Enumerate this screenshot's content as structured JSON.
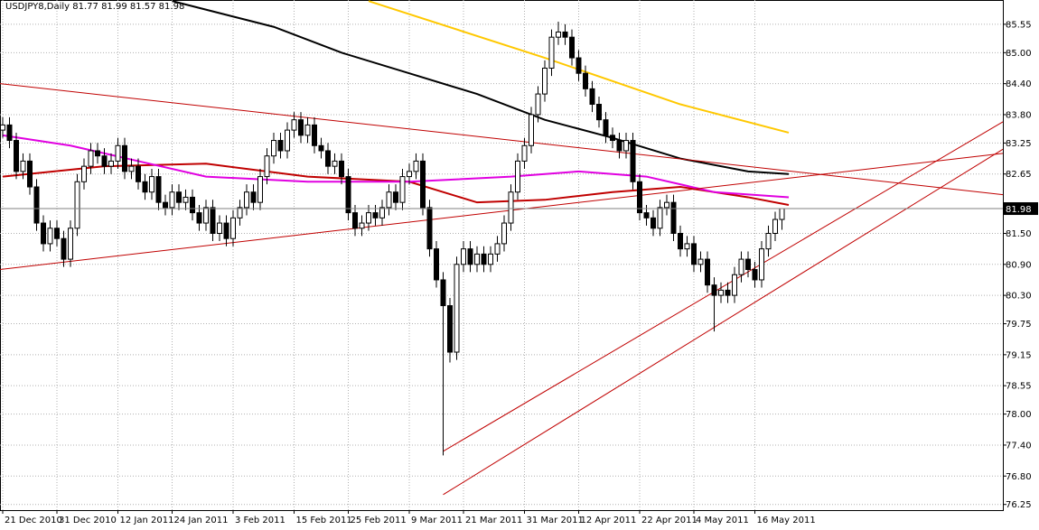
{
  "chart_data": {
    "type": "candlestick",
    "title": "USDJPY8,Daily  81.77 81.99 81.57 81.98",
    "up_color": "#ffffff",
    "down_color": "#000000",
    "wick_color": "#000000",
    "xlim": [
      -0.4,
      147.6
    ],
    "xticks": [
      {
        "value": 0,
        "label": "21 Dec 2010"
      },
      {
        "value": 8,
        "label": "31 Dec 2010"
      },
      {
        "value": 17,
        "label": "12 Jan 2011"
      },
      {
        "value": 25,
        "label": "24 Jan 2011"
      },
      {
        "value": 34,
        "label": "3 Feb 2011"
      },
      {
        "value": 43,
        "label": "15 Feb 2011"
      },
      {
        "value": 51,
        "label": "25 Feb 2011"
      },
      {
        "value": 60,
        "label": "9 Mar 2011"
      },
      {
        "value": 68,
        "label": "21 Mar 2011"
      },
      {
        "value": 77,
        "label": "31 Mar 2011"
      },
      {
        "value": 85,
        "label": "12 Apr 2011"
      },
      {
        "value": 94,
        "label": "22 Apr 2011"
      },
      {
        "value": 102,
        "label": "4 May 2011"
      },
      {
        "value": 111,
        "label": "16 May 2011"
      }
    ],
    "ylim": [
      76.14,
      86.02
    ],
    "yticks": [
      85.55,
      {
        "value": 85,
        "label": "85.00"
      },
      {
        "value": 84.4,
        "label": "84.40"
      },
      {
        "value": 83.8,
        "label": "83.80"
      },
      83.25,
      82.65,
      {
        "value": 81.5,
        "label": "81.50"
      },
      {
        "value": 80.9,
        "label": "80.90"
      },
      {
        "value": 80.3,
        "label": "80.30"
      },
      79.75,
      79.15,
      78.55,
      {
        "value": 78,
        "label": "78.00"
      },
      {
        "value": 77.4,
        "label": "77.40"
      },
      {
        "value": 76.8,
        "label": "76.80"
      },
      76.25
    ],
    "grid": true,
    "open": [
      83.5,
      83.6,
      83.3,
      82.7,
      82.9,
      82.4,
      81.7,
      81.3,
      81.6,
      81.4,
      81.0,
      81.6,
      82.5,
      82.8,
      83.1,
      83.0,
      82.8,
      82.9,
      83.2,
      82.7,
      82.8,
      82.5,
      82.3,
      82.6,
      82.1,
      82.0,
      82.3,
      82.1,
      82.2,
      81.9,
      81.7,
      82.0,
      81.5,
      81.7,
      81.4,
      81.8,
      82.0,
      82.3,
      82.1,
      82.6,
      83.0,
      83.3,
      83.1,
      83.5,
      83.7,
      83.4,
      83.6,
      83.2,
      83.1,
      82.8,
      82.9,
      82.6,
      81.9,
      81.6,
      81.7,
      81.9,
      81.8,
      82.0,
      82.3,
      82.1,
      82.6,
      82.7,
      82.9,
      82.0,
      81.2,
      80.6,
      80.1,
      79.2,
      80.9,
      81.2,
      80.9,
      81.1,
      80.9,
      81.1,
      81.3,
      81.7,
      82.3,
      82.9,
      83.2,
      83.8,
      84.2,
      84.7,
      85.3,
      85.4,
      85.3,
      84.9,
      84.6,
      84.3,
      84.0,
      83.7,
      83.4,
      83.3,
      83.1,
      83.3,
      82.5,
      81.9,
      81.8,
      81.6,
      82.0,
      82.1,
      81.5,
      81.2,
      81.3,
      80.9,
      81.0,
      80.5,
      80.3,
      80.4,
      80.3,
      80.7,
      81.0,
      80.8,
      80.6,
      81.2,
      81.5,
      81.77
    ],
    "high": [
      83.75,
      83.75,
      83.45,
      83.05,
      83.05,
      82.55,
      81.85,
      81.75,
      81.75,
      81.55,
      81.75,
      82.65,
      82.95,
      83.25,
      83.25,
      83.15,
      83.05,
      83.35,
      83.35,
      82.95,
      82.95,
      82.65,
      82.75,
      82.75,
      82.25,
      82.45,
      82.45,
      82.35,
      82.35,
      82.05,
      82.15,
      82.15,
      81.85,
      81.85,
      81.95,
      82.15,
      82.45,
      82.45,
      82.75,
      83.15,
      83.45,
      83.45,
      83.65,
      83.85,
      83.85,
      83.75,
      83.75,
      83.35,
      83.25,
      83.05,
      83.05,
      82.75,
      82.05,
      81.85,
      82.05,
      82.05,
      82.15,
      82.45,
      82.45,
      82.75,
      82.85,
      83.05,
      83.05,
      82.15,
      81.35,
      80.75,
      80.25,
      81.05,
      81.35,
      81.35,
      81.25,
      81.25,
      81.25,
      81.45,
      81.85,
      82.45,
      83.05,
      83.35,
      83.95,
      84.35,
      84.85,
      85.45,
      85.6,
      85.55,
      85.45,
      85.05,
      84.75,
      84.45,
      84.15,
      83.85,
      83.55,
      83.45,
      83.45,
      83.45,
      82.65,
      82.05,
      81.95,
      82.15,
      82.25,
      82.25,
      81.65,
      81.45,
      81.45,
      81.15,
      81.15,
      80.65,
      80.55,
      80.55,
      80.85,
      81.15,
      81.15,
      80.95,
      81.35,
      81.65,
      81.92,
      81.99
    ],
    "low": [
      83.35,
      83.15,
      82.55,
      82.55,
      82.25,
      81.55,
      81.15,
      81.15,
      81.25,
      80.85,
      80.85,
      81.45,
      82.35,
      82.65,
      82.85,
      82.65,
      82.65,
      82.75,
      82.55,
      82.55,
      82.35,
      82.15,
      82.15,
      81.95,
      81.85,
      81.85,
      81.95,
      81.95,
      81.75,
      81.55,
      81.55,
      81.35,
      81.35,
      81.25,
      81.25,
      81.65,
      81.85,
      81.95,
      81.95,
      82.45,
      82.85,
      82.95,
      82.95,
      83.35,
      83.25,
      83.25,
      83.05,
      82.95,
      82.65,
      82.65,
      82.45,
      81.75,
      81.45,
      81.45,
      81.55,
      81.65,
      81.65,
      81.85,
      81.95,
      81.95,
      82.45,
      82.55,
      81.85,
      81.05,
      80.45,
      77.2,
      79.0,
      79.05,
      80.75,
      80.75,
      80.75,
      80.75,
      80.75,
      80.95,
      81.15,
      81.55,
      82.15,
      82.75,
      83.05,
      83.65,
      84.05,
      84.55,
      85.15,
      85.15,
      84.75,
      84.45,
      84.15,
      83.85,
      83.55,
      83.25,
      83.15,
      82.95,
      82.95,
      82.35,
      81.75,
      81.65,
      81.45,
      81.45,
      81.85,
      81.35,
      81.05,
      81.05,
      80.75,
      80.75,
      80.35,
      79.6,
      80.15,
      80.15,
      80.15,
      80.55,
      80.65,
      80.45,
      80.45,
      81.05,
      81.35,
      81.57
    ],
    "close": [
      83.6,
      83.3,
      82.7,
      82.9,
      82.4,
      81.7,
      81.3,
      81.6,
      81.4,
      81.0,
      81.6,
      82.5,
      82.8,
      83.1,
      83.0,
      82.8,
      82.9,
      83.2,
      82.7,
      82.8,
      82.5,
      82.3,
      82.6,
      82.1,
      82.0,
      82.3,
      82.1,
      82.2,
      81.9,
      81.7,
      82.0,
      81.5,
      81.7,
      81.4,
      81.8,
      82.0,
      82.3,
      82.1,
      82.6,
      83.0,
      83.3,
      83.1,
      83.5,
      83.7,
      83.4,
      83.6,
      83.2,
      83.1,
      82.8,
      82.9,
      82.6,
      81.9,
      81.6,
      81.7,
      81.9,
      81.8,
      82.0,
      82.3,
      82.1,
      82.6,
      82.7,
      82.9,
      82.0,
      81.2,
      80.6,
      80.1,
      79.2,
      80.9,
      81.2,
      80.9,
      81.1,
      80.9,
      81.1,
      81.3,
      81.7,
      82.3,
      82.9,
      83.2,
      83.8,
      84.2,
      84.7,
      85.3,
      85.4,
      85.3,
      84.9,
      84.6,
      84.3,
      84.0,
      83.7,
      83.4,
      83.3,
      83.1,
      83.3,
      82.5,
      81.9,
      81.8,
      81.6,
      82.0,
      82.1,
      81.5,
      81.2,
      81.3,
      80.9,
      81.0,
      80.5,
      80.3,
      80.4,
      80.3,
      80.7,
      81.0,
      80.8,
      80.6,
      81.2,
      81.5,
      81.77,
      81.98
    ],
    "overlays": [
      {
        "color": "#000000",
        "width": 2,
        "x": [
          25,
          40,
          50,
          60,
          70,
          80,
          90,
          100,
          110,
          116
        ],
        "values": [
          86.0,
          85.5,
          85.0,
          84.6,
          84.2,
          83.7,
          83.35,
          82.95,
          82.7,
          82.65
        ]
      },
      {
        "color": "#ffc800",
        "width": 2,
        "x": [
          54,
          80,
          100,
          116
        ],
        "values": [
          86.0,
          84.9,
          84.0,
          83.45
        ]
      },
      {
        "color": "#c00000",
        "width": 2,
        "x": [
          0,
          15,
          30,
          45,
          60,
          70,
          80,
          90,
          100,
          110,
          116
        ],
        "values": [
          82.6,
          82.8,
          82.85,
          82.6,
          82.5,
          82.1,
          82.15,
          82.3,
          82.4,
          82.2,
          82.05
        ]
      },
      {
        "color": "#e000e0",
        "width": 2,
        "x": [
          0,
          10,
          20,
          30,
          45,
          60,
          75,
          85,
          95,
          105,
          116
        ],
        "values": [
          83.4,
          83.2,
          82.9,
          82.6,
          82.5,
          82.5,
          82.6,
          82.7,
          82.6,
          82.3,
          82.2
        ]
      },
      {
        "color": "#c00000",
        "width": 1,
        "x": [
          -0.4,
          147.6
        ],
        "values": [
          84.4,
          82.25
        ]
      },
      {
        "color": "#c00000",
        "width": 1,
        "x": [
          -0.4,
          147.6
        ],
        "values": [
          80.8,
          83.05
        ]
      },
      {
        "color": "#c00000",
        "width": 1,
        "x": [
          65,
          147.6
        ],
        "values": [
          77.28,
          83.66
        ]
      },
      {
        "color": "#c00000",
        "width": 1,
        "x": [
          65,
          147.6
        ],
        "values": [
          76.44,
          83.13
        ]
      }
    ]
  }
}
